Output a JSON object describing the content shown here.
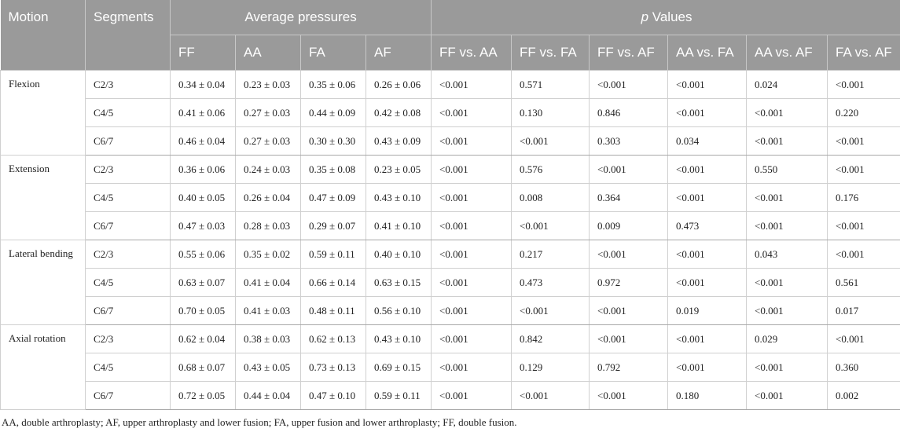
{
  "header": {
    "motion": "Motion",
    "segments": "Segments",
    "avg_pressures": "Average pressures",
    "p_italic": "p",
    "p_rest": " Values",
    "sub": [
      "FF",
      "AA",
      "FA",
      "AF",
      "FF vs. AA",
      "FF vs. FA",
      "FF vs. AF",
      "AA vs. FA",
      "AA vs. AF",
      "FA vs. AF"
    ]
  },
  "groups": [
    {
      "motion": "Flexion",
      "rows": [
        {
          "seg": "C2/3",
          "v": [
            "0.34 ± 0.04",
            "0.23 ± 0.03",
            "0.35 ± 0.06",
            "0.26 ± 0.06",
            "<0.001",
            "0.571",
            "<0.001",
            "<0.001",
            "0.024",
            "<0.001"
          ]
        },
        {
          "seg": "C4/5",
          "v": [
            "0.41 ± 0.06",
            "0.27 ± 0.03",
            "0.44 ± 0.09",
            "0.42 ± 0.08",
            "<0.001",
            "0.130",
            "0.846",
            "<0.001",
            "<0.001",
            "0.220"
          ]
        },
        {
          "seg": "C6/7",
          "v": [
            "0.46 ± 0.04",
            "0.27 ± 0.03",
            "0.30 ± 0.30",
            "0.43 ± 0.09",
            "<0.001",
            "<0.001",
            "0.303",
            "0.034",
            "<0.001",
            "<0.001"
          ]
        }
      ]
    },
    {
      "motion": "Extension",
      "rows": [
        {
          "seg": "C2/3",
          "v": [
            "0.36 ± 0.06",
            "0.24 ± 0.03",
            "0.35 ± 0.08",
            "0.23 ± 0.05",
            "<0.001",
            "0.576",
            "<0.001",
            "<0.001",
            "0.550",
            "<0.001"
          ]
        },
        {
          "seg": "C4/5",
          "v": [
            "0.40 ± 0.05",
            "0.26 ± 0.04",
            "0.47 ± 0.09",
            "0.43 ± 0.10",
            "<0.001",
            "0.008",
            "0.364",
            "<0.001",
            "<0.001",
            "0.176"
          ]
        },
        {
          "seg": "C6/7",
          "v": [
            "0.47 ± 0.03",
            "0.28 ± 0.03",
            "0.29 ± 0.07",
            "0.41 ± 0.10",
            "<0.001",
            "<0.001",
            "0.009",
            "0.473",
            "<0.001",
            "<0.001"
          ]
        }
      ]
    },
    {
      "motion": "Lateral bending",
      "rows": [
        {
          "seg": "C2/3",
          "v": [
            "0.55 ± 0.06",
            "0.35 ± 0.02",
            "0.59 ± 0.11",
            "0.40 ± 0.10",
            "<0.001",
            "0.217",
            "<0.001",
            "<0.001",
            "0.043",
            "<0.001"
          ]
        },
        {
          "seg": "C4/5",
          "v": [
            "0.63 ± 0.07",
            "0.41 ± 0.04",
            "0.66 ± 0.14",
            "0.63 ± 0.15",
            "<0.001",
            "0.473",
            "0.972",
            "<0.001",
            "<0.001",
            "0.561"
          ]
        },
        {
          "seg": "C6/7",
          "v": [
            "0.70 ± 0.05",
            "0.41 ± 0.03",
            "0.48 ± 0.11",
            "0.56 ± 0.10",
            "<0.001",
            "<0.001",
            "<0.001",
            "0.019",
            "<0.001",
            "0.017"
          ]
        }
      ]
    },
    {
      "motion": "Axial rotation",
      "rows": [
        {
          "seg": "C2/3",
          "v": [
            "0.62 ± 0.04",
            "0.38 ± 0.03",
            "0.62 ± 0.13",
            "0.43 ± 0.10",
            "<0.001",
            "0.842",
            "<0.001",
            "<0.001",
            "0.029",
            "<0.001"
          ]
        },
        {
          "seg": "C4/5",
          "v": [
            "0.68 ± 0.07",
            "0.43 ± 0.05",
            "0.73 ± 0.13",
            "0.69 ± 0.15",
            "<0.001",
            "0.129",
            "0.792",
            "<0.001",
            "<0.001",
            "0.360"
          ]
        },
        {
          "seg": "C6/7",
          "v": [
            "0.72 ± 0.05",
            "0.44 ± 0.04",
            "0.47 ± 0.10",
            "0.59 ± 0.11",
            "<0.001",
            "<0.001",
            "<0.001",
            "0.180",
            "<0.001",
            "0.002"
          ]
        }
      ]
    }
  ],
  "footnote": "AA, double arthroplasty; AF, upper arthroplasty and lower fusion; FA, upper fusion and lower arthroplasty; FF, double fusion."
}
